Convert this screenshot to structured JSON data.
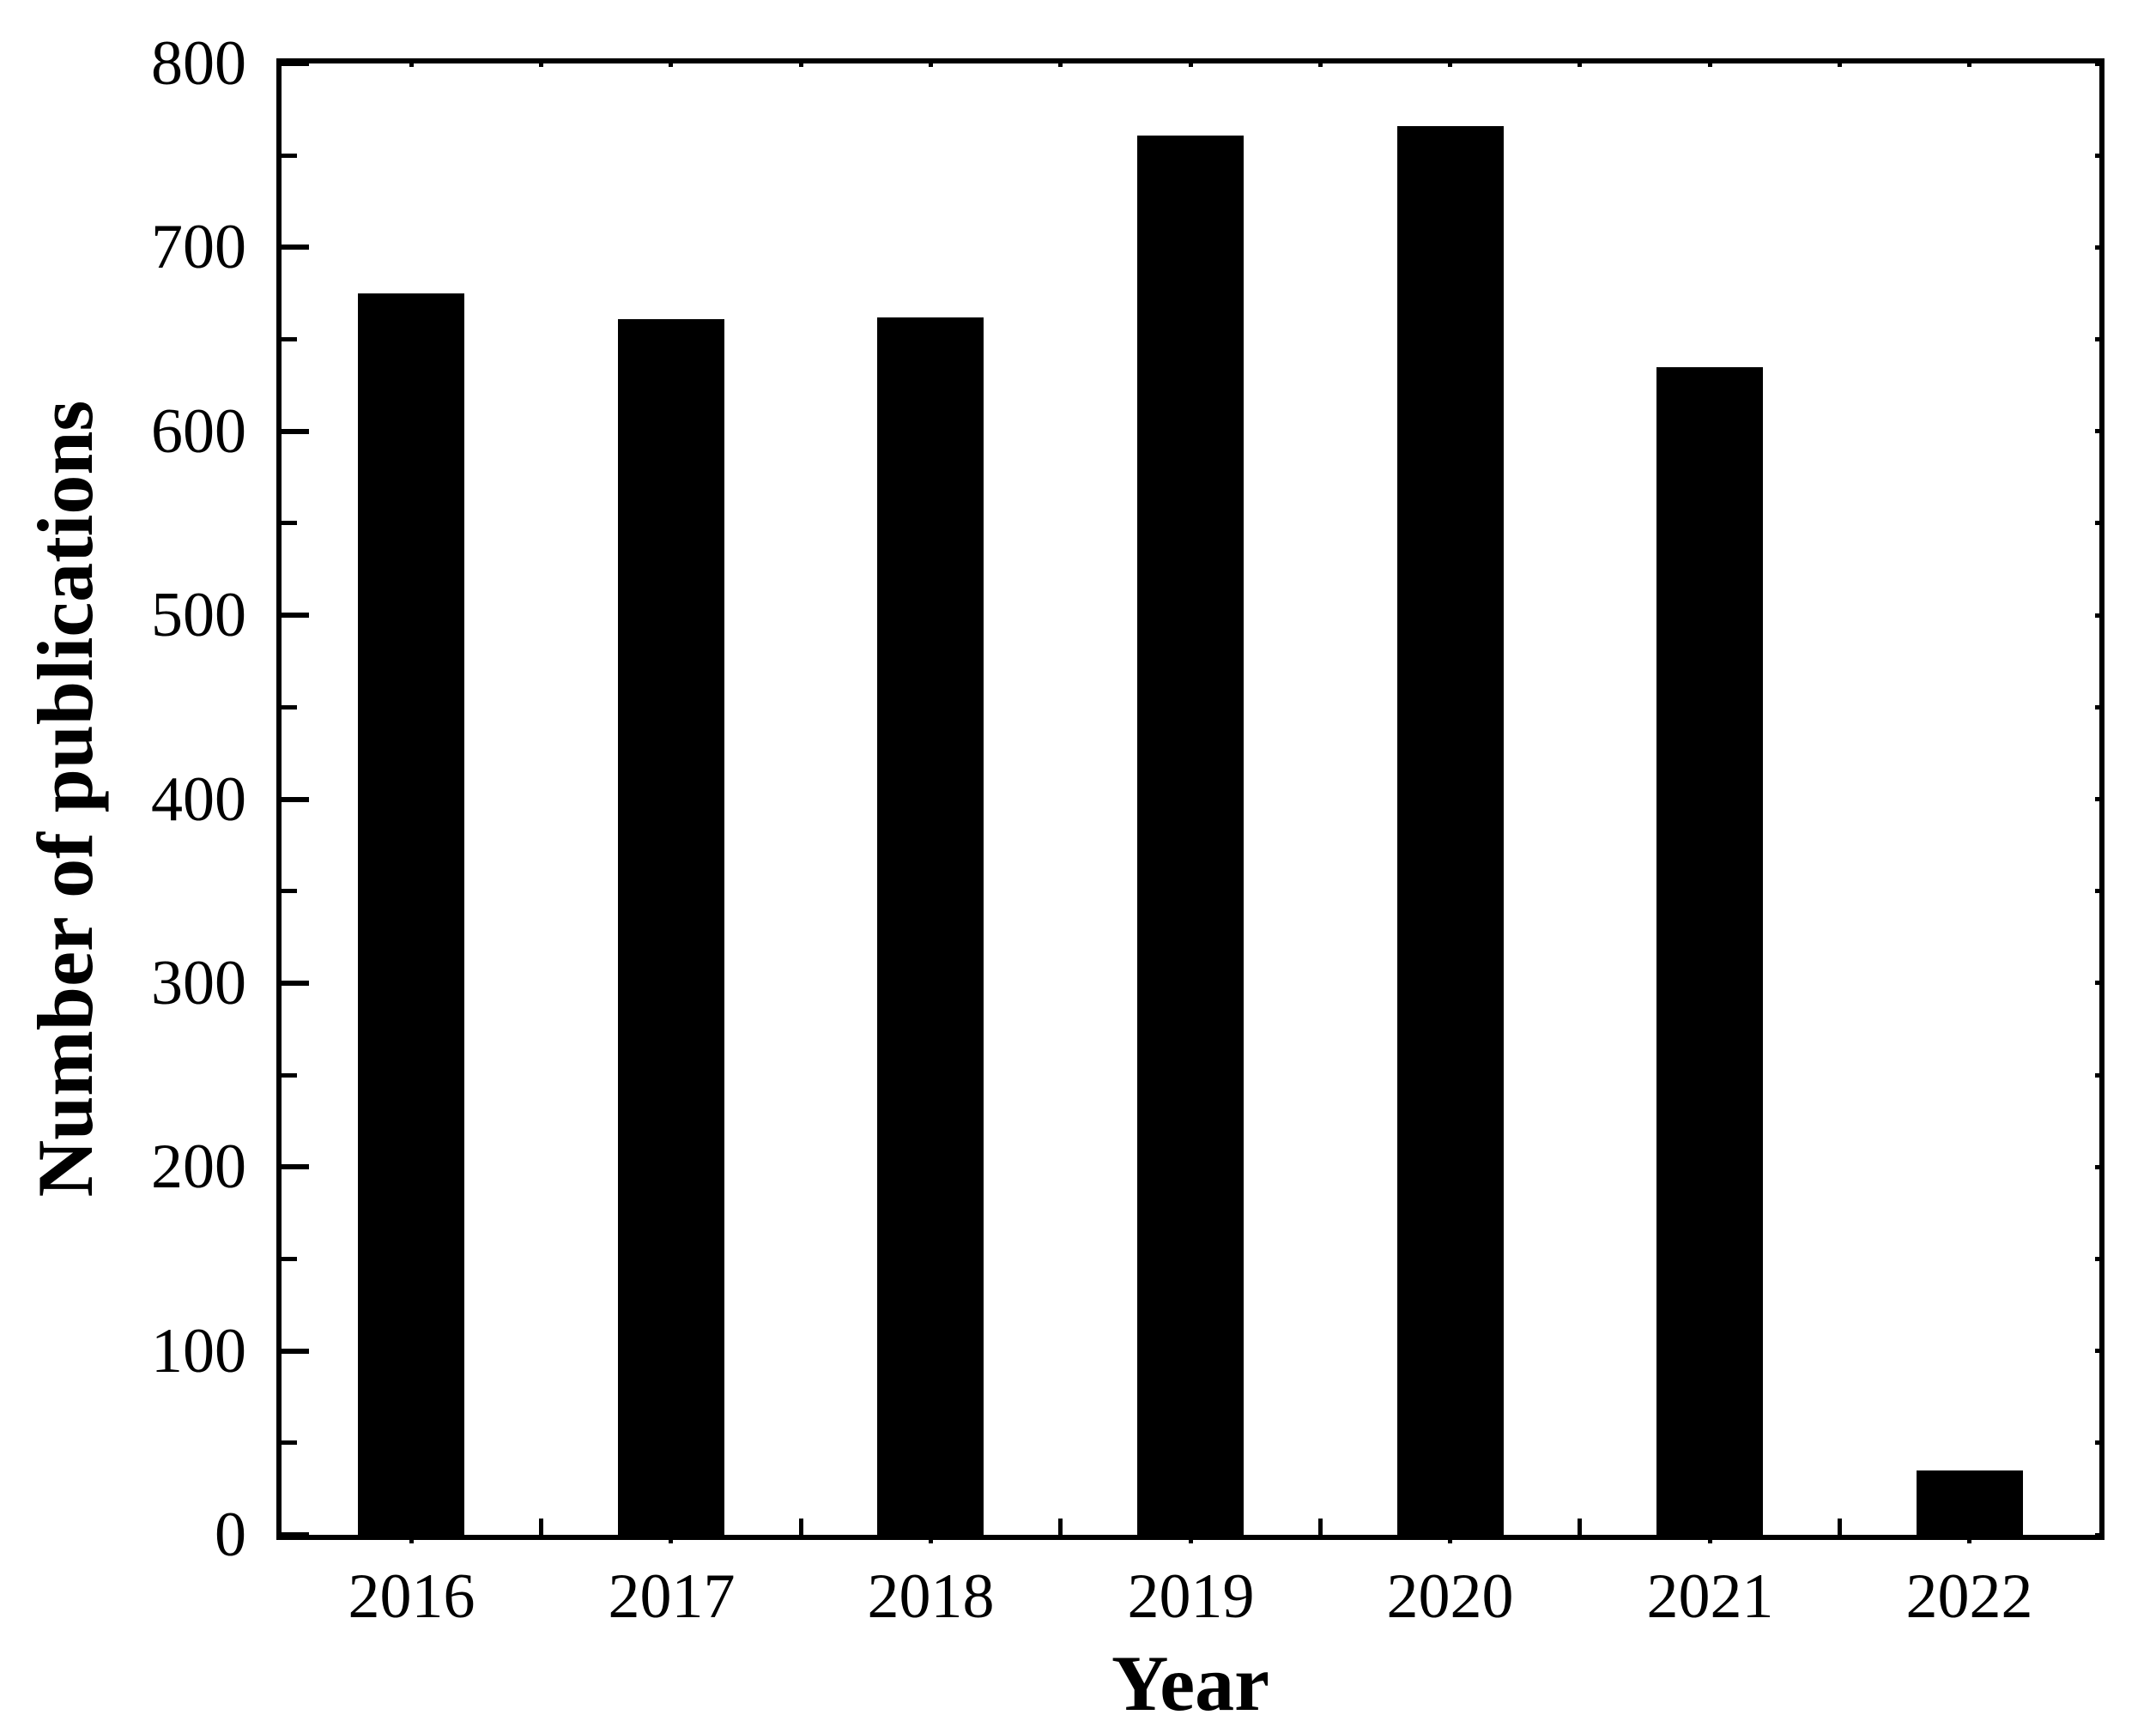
{
  "chart_data": {
    "type": "bar",
    "categories": [
      "2016",
      "2017",
      "2018",
      "2019",
      "2020",
      "2021",
      "2022"
    ],
    "values": [
      675,
      661,
      662,
      761,
      766,
      635,
      35
    ],
    "title": "",
    "xlabel": "Year",
    "ylabel": "Number of publications",
    "ylim": [
      0,
      800
    ],
    "y_major_step": 100,
    "y_minor_step": 50,
    "y_tick_labels": [
      "0",
      "100",
      "200",
      "300",
      "400",
      "500",
      "600",
      "700",
      "800"
    ],
    "bar_color": "#000000",
    "axis_color": "#000000",
    "background_color": "#ffffff",
    "grid": false,
    "legend": null,
    "tick_direction": "in"
  }
}
